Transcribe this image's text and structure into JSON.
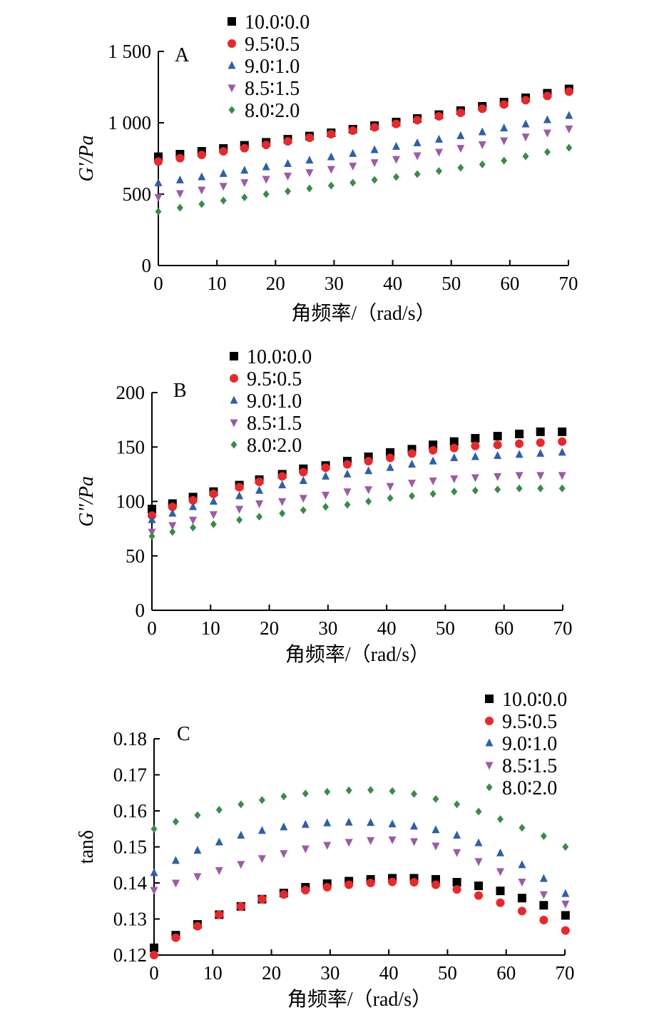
{
  "colors": {
    "10.0:0.0": "#000000",
    "9.5:0.5": "#e8282b",
    "9.0:1.0": "#2f5faa",
    "8.5:1.5": "#9b5ba6",
    "8.0:2.0": "#3b8a4a"
  },
  "chart_data": [
    {
      "type": "scatter",
      "panel_label": "A",
      "xlabel": "角频率/（rad/s）",
      "ylabel": "G'/Pa",
      "xlim": [
        0,
        70
      ],
      "ylim": [
        0,
        1500
      ],
      "xticks": [
        0,
        10,
        20,
        30,
        40,
        50,
        60,
        70
      ],
      "xtick_labels": [
        "0",
        "10",
        "20",
        "30",
        "40",
        "50",
        "60",
        "70"
      ],
      "yticks": [
        0,
        500,
        1000,
        1500
      ],
      "ytick_labels": [
        "0",
        "500",
        "1 000",
        "1 500"
      ],
      "legend_position": "top-left",
      "x": [
        0,
        3.7,
        7.4,
        11.1,
        14.7,
        18.4,
        22.1,
        25.8,
        29.5,
        33.2,
        36.9,
        40.6,
        44.2,
        47.9,
        51.6,
        55.3,
        59.0,
        62.7,
        66.4,
        70.1
      ],
      "series": [
        {
          "name": "10.0∶0.0",
          "marker": "square",
          "values": [
            762,
            780,
            800,
            820,
            842,
            863,
            885,
            907,
            930,
            955,
            980,
            1005,
            1030,
            1057,
            1085,
            1115,
            1145,
            1175,
            1207,
            1237
          ]
        },
        {
          "name": "9.5∶0.5",
          "marker": "circle",
          "values": [
            728,
            752,
            775,
            800,
            822,
            845,
            870,
            895,
            920,
            945,
            968,
            992,
            1018,
            1045,
            1070,
            1098,
            1128,
            1158,
            1188,
            1218
          ]
        },
        {
          "name": "9.0∶1.0",
          "marker": "triangle-up",
          "values": [
            578,
            598,
            620,
            643,
            666,
            690,
            713,
            737,
            760,
            784,
            810,
            833,
            858,
            883,
            908,
            935,
            962,
            990,
            1020,
            1050
          ]
        },
        {
          "name": "8.5∶1.5",
          "marker": "triangle-down",
          "values": [
            478,
            505,
            530,
            556,
            582,
            605,
            628,
            652,
            675,
            698,
            722,
            745,
            770,
            795,
            822,
            848,
            875,
            902,
            930,
            958
          ]
        },
        {
          "name": "8.0∶2.0",
          "marker": "diamond",
          "values": [
            378,
            405,
            430,
            455,
            477,
            500,
            520,
            540,
            560,
            580,
            600,
            620,
            640,
            662,
            685,
            708,
            735,
            765,
            795,
            825
          ]
        }
      ]
    },
    {
      "type": "scatter",
      "panel_label": "B",
      "xlabel": "角频率/（rad/s）",
      "ylabel": "G\"/Pa",
      "xlim": [
        0,
        70
      ],
      "ylim": [
        0,
        200
      ],
      "xticks": [
        0,
        10,
        20,
        30,
        40,
        50,
        60,
        70
      ],
      "xtick_labels": [
        "0",
        "10",
        "20",
        "30",
        "40",
        "50",
        "60",
        "70"
      ],
      "yticks": [
        0,
        50,
        100,
        150,
        200
      ],
      "ytick_labels": [
        "0",
        "50",
        "100",
        "150",
        "200"
      ],
      "legend_position": "top-left",
      "x": [
        0,
        3.5,
        7.0,
        10.5,
        14.9,
        18.3,
        22.2,
        25.8,
        29.6,
        33.3,
        36.9,
        40.6,
        44.3,
        47.9,
        51.5,
        55.1,
        58.9,
        62.6,
        66.2,
        69.9
      ],
      "series": [
        {
          "name": "10.0∶0.0",
          "marker": "square",
          "values": [
            93,
            98,
            104,
            109,
            115,
            120,
            125,
            130,
            133,
            137,
            141,
            145,
            148,
            152,
            155,
            158,
            160,
            162,
            164,
            164
          ]
        },
        {
          "name": "9.5∶0.5",
          "marker": "circle",
          "values": [
            87,
            95,
            101,
            107,
            113,
            118,
            123,
            127,
            131,
            134,
            137,
            140,
            144,
            147,
            149,
            151,
            152,
            153,
            154,
            155
          ]
        },
        {
          "name": "9.0∶1.0",
          "marker": "triangle-up",
          "values": [
            83,
            89,
            95,
            100,
            105,
            110,
            115,
            119,
            123,
            125,
            128,
            131,
            134,
            137,
            140,
            141,
            142,
            143,
            144,
            145
          ]
        },
        {
          "name": "8.5∶1.5",
          "marker": "triangle-down",
          "values": [
            72,
            78,
            83,
            88,
            93,
            98,
            100,
            103,
            106,
            109,
            111,
            114,
            117,
            119,
            121,
            122,
            123,
            124,
            124,
            124
          ]
        },
        {
          "name": "8.0∶2.0",
          "marker": "diamond",
          "values": [
            68,
            72,
            76,
            79,
            83,
            86,
            89,
            92,
            95,
            97,
            100,
            103,
            105,
            107,
            109,
            110,
            111,
            112,
            112,
            112
          ]
        }
      ]
    },
    {
      "type": "scatter",
      "panel_label": "C",
      "xlabel": "角频率/（rad/s）",
      "ylabel": "tanδ",
      "xlim": [
        0,
        70
      ],
      "ylim": [
        0.12,
        0.18
      ],
      "xticks": [
        0,
        10,
        20,
        30,
        40,
        50,
        60,
        70
      ],
      "xtick_labels": [
        "0",
        "10",
        "20",
        "30",
        "40",
        "50",
        "60",
        "70"
      ],
      "yticks": [
        0.12,
        0.13,
        0.14,
        0.15,
        0.16,
        0.17,
        0.18
      ],
      "ytick_labels": [
        "0.12",
        "0.13",
        "0.14",
        "0.15",
        "0.16",
        "0.17",
        "0.18"
      ],
      "legend_position": "top-right",
      "x": [
        0,
        3.7,
        7.4,
        11.1,
        14.8,
        18.4,
        22.1,
        25.8,
        29.5,
        33.2,
        36.9,
        40.6,
        44.3,
        48.0,
        51.6,
        55.3,
        59.0,
        62.7,
        66.4,
        70.1
      ],
      "series": [
        {
          "name": "10.0∶0.0",
          "marker": "square",
          "values": [
            0.122,
            0.1255,
            0.1285,
            0.1312,
            0.1335,
            0.1355,
            0.1372,
            0.1388,
            0.1398,
            0.1405,
            0.141,
            0.1413,
            0.1413,
            0.141,
            0.1402,
            0.1392,
            0.1378,
            0.1358,
            0.1338,
            0.131
          ]
        },
        {
          "name": "9.5∶0.5",
          "marker": "circle",
          "values": [
            0.12,
            0.1248,
            0.128,
            0.1312,
            0.1335,
            0.1355,
            0.1368,
            0.138,
            0.1388,
            0.1395,
            0.14,
            0.1403,
            0.1402,
            0.1395,
            0.1382,
            0.1365,
            0.1345,
            0.1322,
            0.1297,
            0.1268
          ]
        },
        {
          "name": "9.0∶1.0",
          "marker": "triangle-up",
          "values": [
            0.1428,
            0.1462,
            0.149,
            0.1513,
            0.1532,
            0.1545,
            0.1555,
            0.1562,
            0.1566,
            0.1568,
            0.1567,
            0.1563,
            0.1557,
            0.1547,
            0.1532,
            0.1511,
            0.1483,
            0.145,
            0.1412,
            0.137
          ]
        },
        {
          "name": "8.5∶1.5",
          "marker": "triangle-down",
          "values": [
            0.138,
            0.14,
            0.1418,
            0.1435,
            0.1452,
            0.1468,
            0.1482,
            0.1495,
            0.1505,
            0.1513,
            0.1518,
            0.152,
            0.1515,
            0.1503,
            0.1485,
            0.146,
            0.1432,
            0.1403,
            0.1368,
            0.1342
          ]
        },
        {
          "name": "8.0∶2.0",
          "marker": "diamond",
          "values": [
            0.155,
            0.157,
            0.1588,
            0.1603,
            0.1618,
            0.163,
            0.164,
            0.1648,
            0.1653,
            0.1657,
            0.1658,
            0.1655,
            0.1647,
            0.1633,
            0.1618,
            0.1598,
            0.1577,
            0.1553,
            0.153,
            0.15
          ]
        }
      ]
    }
  ]
}
